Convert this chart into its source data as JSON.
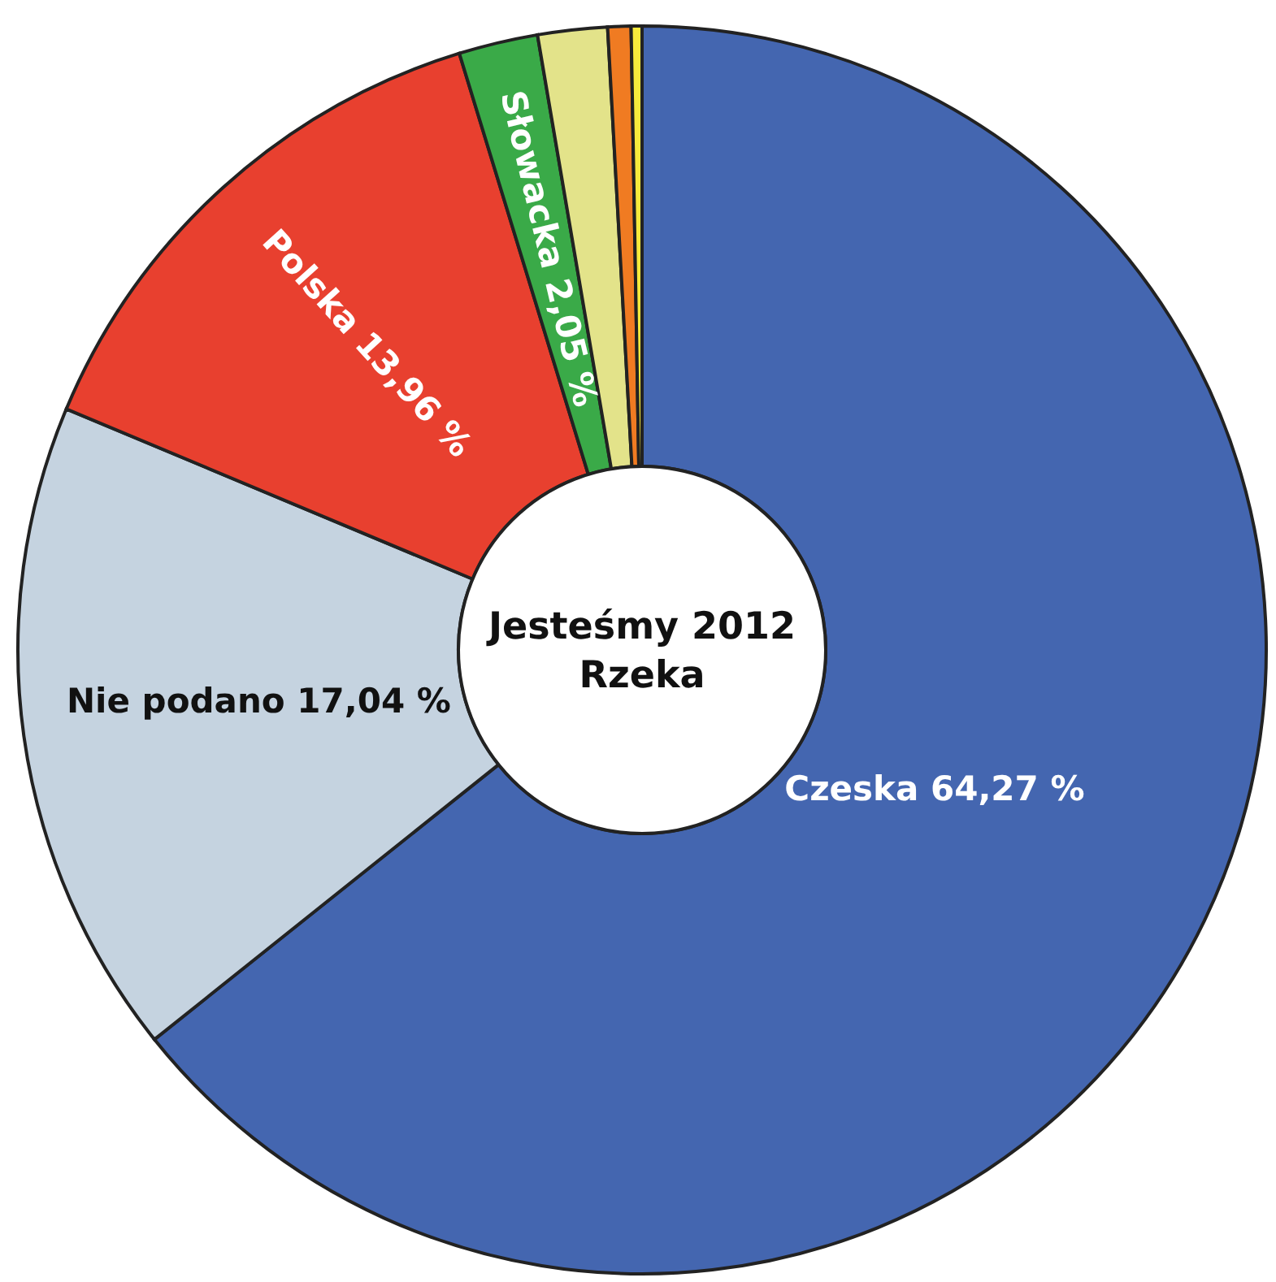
{
  "chart_data": {
    "type": "donut",
    "title": "Jesteśmy 2012\nRzeka",
    "categories": [
      "Czeska",
      "Nie podano",
      "Polska",
      "Słowacka",
      null,
      null,
      null
    ],
    "values": [
      64.27,
      17.04,
      13.96,
      2.05,
      1.8,
      0.6,
      0.28
    ],
    "value_labels": [
      "64,27 %",
      "17,04 %",
      "13,96 %",
      "2,05 %",
      null,
      null,
      null
    ],
    "colors": [
      "#4466b0",
      "#c5d3e0",
      "#e8402f",
      "#3aaa48",
      "#e3e38a",
      "#f07b22",
      "#f7ea3c"
    ],
    "legend": false
  }
}
